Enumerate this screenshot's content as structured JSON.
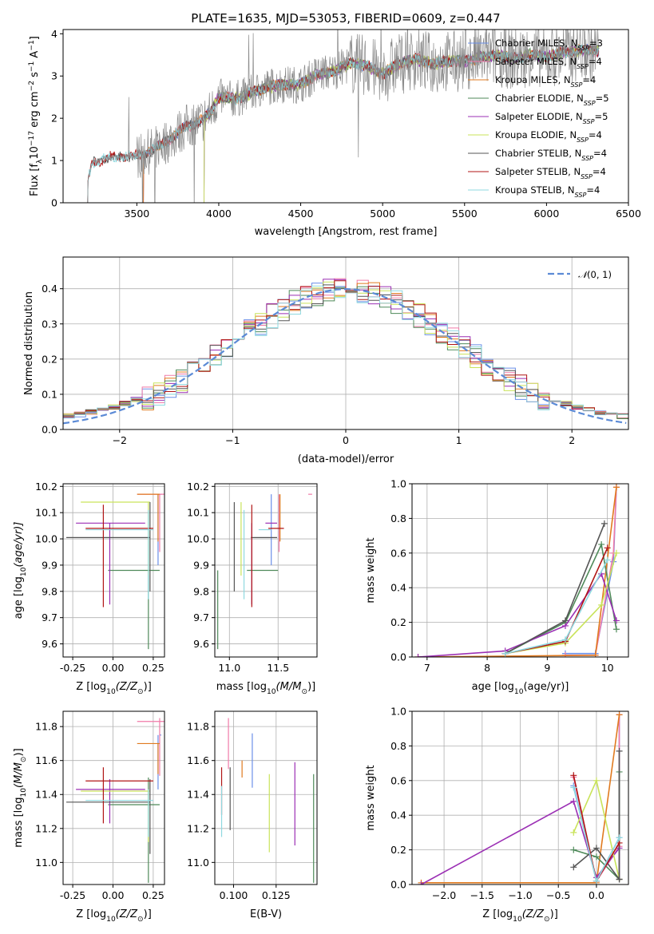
{
  "figure": {
    "title": "PLATE=1635, MJD=53053, FIBERID=0609, z=0.447"
  },
  "series_colors": {
    "Chabrier MILES": "#6a8fe8",
    "Salpeter MILES": "#f07aa8",
    "Kroupa MILES": "#e07a1f",
    "Chabrier ELODIE": "#4f8a5a",
    "Salpeter ELODIE": "#9b2fb4",
    "Kroupa ELODIE": "#c9e35a",
    "Chabrier STELIB": "#555555",
    "Salpeter STELIB": "#b01515",
    "Kroupa STELIB": "#8fd9e0",
    "data": "#8a8a8a",
    "normal": "#5b8ad6"
  },
  "chart_data": [
    {
      "id": "spectrum",
      "type": "line",
      "title": "PLATE=1635, MJD=53053, FIBERID=0609, z=0.447",
      "xlabel": "wavelength [Angstrom, rest frame]",
      "ylabel_parts": [
        "Flux [f",
        "λ",
        "10",
        "−17",
        " erg cm",
        "−2",
        " s",
        "−1",
        " A",
        "−1",
        "]"
      ],
      "xlim": [
        3050,
        6500
      ],
      "ylim": [
        0,
        4.1
      ],
      "xticks": [
        3500,
        4000,
        4500,
        5000,
        5500,
        6000,
        6500
      ],
      "yticks": [
        0,
        1,
        2,
        3,
        4
      ],
      "legend": [
        {
          "text": "Chabrier MILES, N",
          "sub": "SSP",
          "tail": "=3",
          "color": "#6a8fe8"
        },
        {
          "text": "Salpeter MILES, N",
          "sub": "SSP",
          "tail": "=4",
          "color": "#f07aa8"
        },
        {
          "text": "Kroupa MILES, N",
          "sub": "SSP",
          "tail": "=4",
          "color": "#e07a1f"
        },
        {
          "text": "Chabrier ELODIE, N",
          "sub": "SSP",
          "tail": "=5",
          "color": "#4f8a5a"
        },
        {
          "text": "Salpeter ELODIE, N",
          "sub": "SSP",
          "tail": "=5",
          "color": "#9b2fb4"
        },
        {
          "text": "Kroupa ELODIE, N",
          "sub": "SSP",
          "tail": "=4",
          "color": "#c9e35a"
        },
        {
          "text": "Chabrier STELIB, N",
          "sub": "SSP",
          "tail": "=4",
          "color": "#555555"
        },
        {
          "text": "Salpeter STELIB, N",
          "sub": "SSP",
          "tail": "=4",
          "color": "#b01515"
        },
        {
          "text": "Kroupa STELIB, N",
          "sub": "SSP",
          "tail": "=4",
          "color": "#8fd9e0"
        }
      ],
      "continuum_knots": {
        "x": [
          3200,
          3230,
          3300,
          3400,
          3500,
          3600,
          3700,
          3800,
          3900,
          3950,
          4000,
          4100,
          4200,
          4300,
          4400,
          4500,
          4600,
          4700,
          4800,
          4900,
          5000,
          5100,
          5200,
          5300,
          5400,
          5500,
          5600,
          5700,
          5800,
          5900,
          6000,
          6100,
          6200,
          6300
        ],
        "y": [
          0.55,
          0.95,
          1.05,
          1.1,
          1.1,
          1.25,
          1.5,
          1.8,
          1.95,
          2.15,
          2.5,
          2.45,
          2.6,
          2.75,
          2.8,
          2.8,
          3.05,
          3.1,
          3.3,
          3.25,
          3.05,
          3.3,
          3.4,
          3.3,
          3.35,
          3.35,
          3.45,
          3.5,
          3.4,
          3.5,
          3.45,
          3.55,
          3.6,
          3.6
        ]
      },
      "series_start": {
        "Chabrier MILES": 3540,
        "Salpeter MILES": 3540,
        "Kroupa MILES": 3540,
        "Chabrier ELODIE": 3910,
        "Salpeter ELODIE": 3910,
        "Kroupa ELODIE": 3910,
        "Chabrier STELIB": 3200,
        "Salpeter STELIB": 3200,
        "Kroupa STELIB": 3200
      }
    },
    {
      "id": "residuals",
      "type": "line",
      "xlabel": "(data-model)/error",
      "ylabel": "Normed distribution",
      "xlim": [
        -2.5,
        2.5
      ],
      "ylim": [
        0,
        0.49
      ],
      "xticks": [
        -2,
        -1,
        0,
        1,
        2
      ],
      "yticks": [
        0.0,
        0.1,
        0.2,
        0.3,
        0.4
      ],
      "legend_prefix": "𝒩",
      "legend_args": "(0, 1)",
      "normal_curve": {
        "mean": 0,
        "sigma": 1,
        "style": "dashed"
      },
      "bin_width": 0.1
    },
    {
      "id": "age_vs_Z",
      "type": "scatter",
      "xlabel_prefix": "Z [log",
      "xlabel_sub": "10",
      "xlabel_mid": "(Z/Z",
      "xlabel_sub2": "⊙",
      "xlabel_tail": ")]",
      "ylabel_prefix": "age  [log",
      "ylabel_sub": "10",
      "ylabel_tail": "(age/yr)]",
      "xlim": [
        -0.31,
        0.32
      ],
      "ylim": [
        9.55,
        10.21
      ],
      "xticks": [
        "-0.25",
        "0.00",
        "0.25"
      ],
      "xtick_values": [
        -0.25,
        0.0,
        0.25
      ],
      "yticks": [
        "9.6",
        "9.7",
        "9.8",
        "9.9",
        "10.0",
        "10.1",
        "10.2"
      ],
      "ytick_values": [
        9.6,
        9.7,
        9.8,
        9.9,
        10.0,
        10.1,
        10.2
      ]
    },
    {
      "id": "age_vs_mass",
      "type": "scatter",
      "xlabel_prefix": "mass [log",
      "xlabel_sub": "10",
      "xlabel_mid": "(M/M",
      "xlabel_sub2": "⊙",
      "xlabel_tail": ")]",
      "xlim": [
        10.85,
        11.9
      ],
      "ylim": [
        9.55,
        10.21
      ],
      "xticks": [
        "11.0",
        "11.5"
      ],
      "xtick_values": [
        11.0,
        11.5
      ],
      "yticks": [
        "9.6",
        "9.7",
        "9.8",
        "9.9",
        "10.0",
        "10.1",
        "10.2"
      ],
      "ytick_values": [
        9.6,
        9.7,
        9.8,
        9.9,
        10.0,
        10.1,
        10.2
      ]
    },
    {
      "id": "mass_weight_vs_age",
      "type": "line",
      "xlabel_prefix": "age  [log",
      "xlabel_sub": "10",
      "xlabel_tail": "(age/yr)]",
      "ylabel": "mass weight",
      "xlim": [
        6.75,
        10.35
      ],
      "ylim": [
        0,
        1.0
      ],
      "xticks": [
        7,
        8,
        9,
        10
      ],
      "yticks": [
        "0.0",
        "0.2",
        "0.4",
        "0.6",
        "0.8",
        "1.0"
      ],
      "ytick_values": [
        0,
        0.2,
        0.4,
        0.6,
        0.8,
        1.0
      ],
      "series": [
        {
          "name": "Chabrier MILES",
          "x": [
            9.3,
            9.8,
            10.1,
            10.15
          ],
          "y": [
            0.02,
            0.02,
            0.55,
            0.98
          ]
        },
        {
          "name": "Salpeter MILES",
          "x": [
            9.3,
            9.8,
            10.1,
            10.15
          ],
          "y": [
            0.01,
            0.01,
            0.6,
            0.98
          ]
        },
        {
          "name": "Kroupa MILES",
          "x": [
            6.85,
            9.8,
            10.15
          ],
          "y": [
            0.0,
            0.01,
            0.98
          ]
        },
        {
          "name": "Chabrier ELODIE",
          "x": [
            8.3,
            9.3,
            9.9,
            10.15
          ],
          "y": [
            0.02,
            0.2,
            0.65,
            0.16
          ]
        },
        {
          "name": "Salpeter ELODIE",
          "x": [
            6.85,
            8.3,
            9.3,
            9.9,
            10.15
          ],
          "y": [
            0.0,
            0.035,
            0.18,
            0.48,
            0.21
          ]
        },
        {
          "name": "Kroupa ELODIE",
          "x": [
            8.3,
            9.3,
            9.9,
            10.15
          ],
          "y": [
            0.02,
            0.08,
            0.3,
            0.6
          ]
        },
        {
          "name": "Chabrier STELIB",
          "x": [
            8.3,
            9.3,
            9.95
          ],
          "y": [
            0.02,
            0.21,
            0.77
          ]
        },
        {
          "name": "Salpeter STELIB",
          "x": [
            8.3,
            9.3,
            10.0
          ],
          "y": [
            0.02,
            0.09,
            0.63
          ]
        },
        {
          "name": "Kroupa STELIB",
          "x": [
            8.3,
            9.3,
            10.0
          ],
          "y": [
            0.02,
            0.1,
            0.56
          ]
        }
      ]
    },
    {
      "id": "mass_vs_Z",
      "type": "scatter",
      "xlabel_prefix": "Z [log",
      "xlabel_sub": "10",
      "xlabel_mid": "(Z/Z",
      "xlabel_sub2": "⊙",
      "xlabel_tail": ")]",
      "ylabel_prefix": "mass [log",
      "ylabel_sub": "10",
      "ylabel_mid": "(M/M",
      "ylabel_sub2": "⊙",
      "ylabel_tail": ")]",
      "xlim": [
        -0.31,
        0.32
      ],
      "ylim": [
        10.87,
        11.89
      ],
      "xticks": [
        "-0.25",
        "0.00",
        "0.25"
      ],
      "xtick_values": [
        -0.25,
        0.0,
        0.25
      ],
      "yticks": [
        "11.0",
        "11.2",
        "11.4",
        "11.6",
        "11.8"
      ],
      "ytick_values": [
        11.0,
        11.2,
        11.4,
        11.6,
        11.8
      ]
    },
    {
      "id": "mass_vs_ebv",
      "type": "scatter",
      "xlabel": "E(B-V)",
      "xlim": [
        0.089,
        0.149
      ],
      "ylim": [
        10.87,
        11.89
      ],
      "xticks": [
        "0.100",
        "0.125"
      ],
      "xtick_values": [
        0.1,
        0.125
      ],
      "yticks": [
        "11.0",
        "11.2",
        "11.4",
        "11.6",
        "11.8"
      ],
      "ytick_values": [
        11.0,
        11.2,
        11.4,
        11.6,
        11.8
      ]
    },
    {
      "id": "mass_weight_vs_Z",
      "type": "line",
      "xlabel_prefix": "Z [log",
      "xlabel_sub": "10",
      "xlabel_mid": "(Z/Z",
      "xlabel_sub2": "⊙",
      "xlabel_tail": ")]",
      "ylabel": "mass weight",
      "xlim": [
        -2.42,
        0.42
      ],
      "ylim": [
        0,
        1.0
      ],
      "xticks": [
        "−2.0",
        "−1.5",
        "−1.0",
        "−0.5",
        "0.0"
      ],
      "xtick_values": [
        -2.0,
        -1.5,
        -1.0,
        -0.5,
        0.0
      ],
      "yticks": [
        "0.0",
        "0.2",
        "0.4",
        "0.6",
        "0.8",
        "1.0"
      ],
      "ytick_values": [
        0,
        0.2,
        0.4,
        0.6,
        0.8,
        1.0
      ],
      "series": [
        {
          "name": "Chabrier MILES",
          "x": [
            -0.3,
            0.0,
            0.3,
            0.3
          ],
          "y": [
            0.57,
            0.02,
            0.27,
            0.98
          ]
        },
        {
          "name": "Salpeter MILES",
          "x": [
            -0.3,
            0.0,
            0.3,
            0.3
          ],
          "y": [
            0.62,
            0.02,
            0.22,
            0.98
          ]
        },
        {
          "name": "Kroupa MILES",
          "x": [
            -2.3,
            0.0,
            0.3
          ],
          "y": [
            0.01,
            0.01,
            0.98
          ]
        },
        {
          "name": "Chabrier ELODIE",
          "x": [
            -0.3,
            0.0,
            0.3,
            0.3
          ],
          "y": [
            0.2,
            0.16,
            0.03,
            0.65
          ]
        },
        {
          "name": "Salpeter ELODIE",
          "x": [
            -2.3,
            -0.3,
            0.0,
            0.3,
            0.3
          ],
          "y": [
            0.0,
            0.48,
            0.04,
            0.21,
            0.03
          ]
        },
        {
          "name": "Kroupa ELODIE",
          "x": [
            -0.3,
            0.0,
            0.3
          ],
          "y": [
            0.3,
            0.6,
            0.03
          ]
        },
        {
          "name": "Chabrier STELIB",
          "x": [
            -0.3,
            0.0,
            0.3,
            0.3
          ],
          "y": [
            0.1,
            0.21,
            0.03,
            0.77
          ]
        },
        {
          "name": "Salpeter STELIB",
          "x": [
            -0.3,
            0.0,
            0.3
          ],
          "y": [
            0.63,
            0.02,
            0.24
          ]
        },
        {
          "name": "Kroupa STELIB",
          "x": [
            -0.3,
            0.0,
            0.3
          ],
          "y": [
            0.56,
            0.02,
            0.27
          ]
        }
      ]
    }
  ],
  "ssp_estimates": [
    {
      "name": "Chabrier MILES",
      "Z": [
        0.28,
        0.29,
        0.3
      ],
      "age": [
        9.9,
        10.17,
        10.17
      ],
      "mass": [
        11.43,
        11.75,
        11.75
      ],
      "ebv": [
        0.111,
        11.44,
        11.76
      ]
    },
    {
      "name": "Salpeter MILES",
      "Z": [
        0.29,
        0.15,
        0.32
      ],
      "age": [
        9.95,
        10.17,
        10.17
      ],
      "mass": [
        11.51,
        11.81,
        11.85
      ],
      "ebv": [
        0.097,
        11.55,
        11.85
      ]
    },
    {
      "name": "Kroupa MILES",
      "Z": [
        0.28,
        0.15,
        0.29
      ],
      "age": [
        9.99,
        10.17,
        10.17
      ],
      "mass": [
        11.52,
        11.7,
        11.7
      ],
      "ebv": [
        0.105,
        11.5,
        11.6
      ]
    },
    {
      "name": "Chabrier ELODIE",
      "Z": [
        0.22,
        -0.03,
        0.29
      ],
      "age": [
        9.58,
        9.88,
        9.88
      ],
      "mass": [
        10.88,
        11.18,
        11.5
      ],
      "ebv": [
        0.147,
        10.88,
        11.52
      ]
    },
    {
      "name": "Salpeter ELODIE",
      "Z": [
        -0.02,
        -0.23,
        0.2
      ],
      "age": [
        9.75,
        10.06,
        10.06
      ],
      "mass": [
        11.23,
        11.37,
        11.49
      ],
      "ebv": [
        0.136,
        11.1,
        11.59
      ]
    },
    {
      "name": "Kroupa ELODIE",
      "Z": [
        0.22,
        -0.2,
        0.23
      ],
      "age": [
        9.86,
        10.14,
        10.14
      ],
      "mass": [
        11.12,
        11.42,
        11.42
      ],
      "ebv": [
        0.121,
        11.06,
        11.52
      ]
    },
    {
      "name": "Chabrier STELIB",
      "Z": [
        0.23,
        -0.29,
        0.23
      ],
      "age": [
        9.8,
        9.87,
        10.14
      ],
      "mass": [
        11.05,
        11.22,
        11.49
      ],
      "ebv": [
        0.098,
        11.19,
        11.56
      ]
    },
    {
      "name": "Salpeter STELIB",
      "Z": [
        -0.06,
        -0.17,
        0.25
      ],
      "age": [
        9.74,
        9.95,
        10.13
      ],
      "mass": [
        11.23,
        11.4,
        11.56
      ],
      "ebv": [
        0.093,
        11.28,
        11.56
      ]
    },
    {
      "name": "Kroupa STELIB",
      "Z": [
        0.22,
        -0.17,
        0.25
      ],
      "age": [
        9.77,
        9.96,
        10.11
      ],
      "mass": [
        11.15,
        11.3,
        11.43
      ],
      "ebv": [
        0.093,
        11.15,
        11.45
      ]
    }
  ]
}
